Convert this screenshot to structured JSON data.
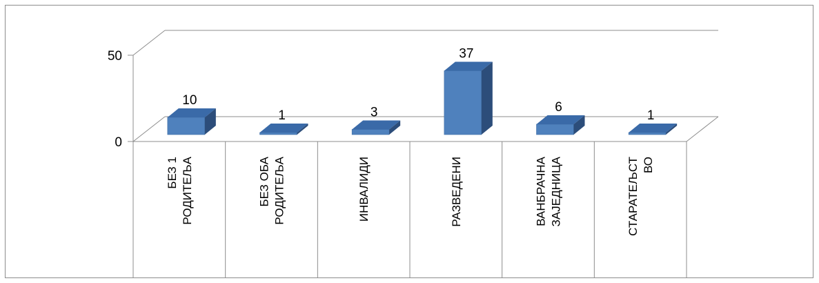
{
  "chart_data": {
    "type": "bar",
    "categories": [
      [
        "БЕЗ 1",
        "РОДИТЕЉА"
      ],
      [
        "БЕЗ ОБА",
        "РОДИТЕЉА"
      ],
      [
        "ИНВАЛИДИ"
      ],
      [
        "РАЗВЕДЕНИ"
      ],
      [
        "ВАНБРАЧНА",
        "ЗАЈЕДНИЦА"
      ],
      [
        "СТАРАТЕЉСТ",
        "ВО"
      ]
    ],
    "values": [
      10,
      1,
      3,
      37,
      6,
      1
    ],
    "ylim": [
      0,
      50
    ],
    "yticks": [
      "0",
      "50"
    ],
    "data_labels": [
      "10",
      "1",
      "3",
      "37",
      "6",
      "1"
    ],
    "three_d": true,
    "colors": {
      "bar_front": "#4f81bd",
      "bar_top": "#3a6aa8",
      "bar_side": "#2c4d7a",
      "grid": "#8c8c8c"
    }
  }
}
